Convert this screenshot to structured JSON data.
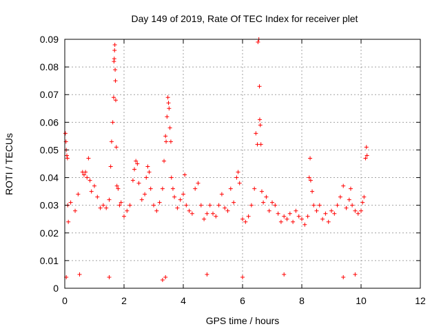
{
  "chart_data": {
    "type": "scatter",
    "title": "Day 149 of 2019, Rate Of TEC Index for receiver plet",
    "xlabel": "GPS time / hours",
    "ylabel": "ROTI / TECUs",
    "xlim": [
      0,
      12
    ],
    "ylim": [
      0,
      0.09
    ],
    "xticks": [
      0,
      2,
      4,
      6,
      8,
      10,
      12
    ],
    "yticks": [
      0,
      0.01,
      0.02,
      0.03,
      0.04,
      0.05,
      0.06,
      0.07,
      0.08,
      0.09
    ],
    "xtick_labels": [
      "0",
      "2",
      "4",
      "6",
      "8",
      "10",
      "12"
    ],
    "ytick_labels": [
      "0",
      "0.01",
      "0.02",
      "0.03",
      "0.04",
      "0.05",
      "0.06",
      "0.07",
      "0.08",
      "0.09"
    ],
    "grid": true,
    "marker": "+",
    "color": "#ff0000",
    "series": [
      {
        "name": "ROTI",
        "points": [
          [
            0.02,
            0.056
          ],
          [
            0.04,
            0.053
          ],
          [
            0.05,
            0.05
          ],
          [
            0.07,
            0.048
          ],
          [
            0.09,
            0.047
          ],
          [
            0.1,
            0.03
          ],
          [
            0.12,
            0.024
          ],
          [
            0.2,
            0.031
          ],
          [
            0.35,
            0.028
          ],
          [
            0.45,
            0.034
          ],
          [
            0.6,
            0.042
          ],
          [
            0.65,
            0.041
          ],
          [
            0.7,
            0.042
          ],
          [
            0.75,
            0.04
          ],
          [
            0.8,
            0.047
          ],
          [
            0.85,
            0.039
          ],
          [
            0.9,
            0.035
          ],
          [
            1.0,
            0.037
          ],
          [
            1.1,
            0.033
          ],
          [
            1.2,
            0.029
          ],
          [
            1.3,
            0.03
          ],
          [
            1.4,
            0.029
          ],
          [
            1.5,
            0.032
          ],
          [
            1.55,
            0.044
          ],
          [
            1.58,
            0.053
          ],
          [
            1.62,
            0.06
          ],
          [
            1.65,
            0.069
          ],
          [
            1.66,
            0.082
          ],
          [
            1.67,
            0.083
          ],
          [
            1.68,
            0.086
          ],
          [
            1.69,
            0.088
          ],
          [
            1.7,
            0.079
          ],
          [
            1.71,
            0.075
          ],
          [
            1.72,
            0.068
          ],
          [
            1.74,
            0.051
          ],
          [
            1.76,
            0.037
          ],
          [
            1.8,
            0.036
          ],
          [
            1.85,
            0.03
          ],
          [
            1.9,
            0.031
          ],
          [
            2.0,
            0.026
          ],
          [
            2.1,
            0.028
          ],
          [
            2.2,
            0.03
          ],
          [
            2.3,
            0.039
          ],
          [
            2.35,
            0.043
          ],
          [
            2.4,
            0.046
          ],
          [
            2.45,
            0.045
          ],
          [
            2.5,
            0.038
          ],
          [
            2.6,
            0.032
          ],
          [
            2.7,
            0.034
          ],
          [
            2.75,
            0.04
          ],
          [
            2.8,
            0.044
          ],
          [
            2.85,
            0.042
          ],
          [
            2.9,
            0.036
          ],
          [
            3.0,
            0.03
          ],
          [
            3.1,
            0.028
          ],
          [
            3.2,
            0.031
          ],
          [
            3.3,
            0.036
          ],
          [
            3.35,
            0.046
          ],
          [
            3.4,
            0.055
          ],
          [
            3.42,
            0.053
          ],
          [
            3.45,
            0.062
          ],
          [
            3.48,
            0.069
          ],
          [
            3.5,
            0.067
          ],
          [
            3.52,
            0.065
          ],
          [
            3.55,
            0.058
          ],
          [
            3.58,
            0.053
          ],
          [
            3.6,
            0.04
          ],
          [
            3.65,
            0.036
          ],
          [
            3.7,
            0.033
          ],
          [
            3.8,
            0.029
          ],
          [
            3.9,
            0.032
          ],
          [
            4.0,
            0.034
          ],
          [
            4.05,
            0.041
          ],
          [
            4.1,
            0.03
          ],
          [
            4.2,
            0.028
          ],
          [
            4.3,
            0.027
          ],
          [
            4.4,
            0.036
          ],
          [
            4.5,
            0.038
          ],
          [
            4.6,
            0.03
          ],
          [
            4.7,
            0.025
          ],
          [
            4.8,
            0.027
          ],
          [
            4.9,
            0.03
          ],
          [
            5.0,
            0.027
          ],
          [
            5.1,
            0.026
          ],
          [
            5.2,
            0.03
          ],
          [
            5.3,
            0.034
          ],
          [
            5.4,
            0.029
          ],
          [
            5.5,
            0.028
          ],
          [
            5.6,
            0.036
          ],
          [
            5.7,
            0.031
          ],
          [
            5.8,
            0.04
          ],
          [
            5.85,
            0.042
          ],
          [
            5.9,
            0.038
          ],
          [
            6.0,
            0.025
          ],
          [
            6.1,
            0.024
          ],
          [
            6.2,
            0.026
          ],
          [
            6.3,
            0.03
          ],
          [
            6.4,
            0.036
          ],
          [
            6.45,
            0.056
          ],
          [
            6.5,
            0.052
          ],
          [
            6.52,
            0.089
          ],
          [
            6.55,
            0.09
          ],
          [
            6.57,
            0.073
          ],
          [
            6.58,
            0.061
          ],
          [
            6.6,
            0.059
          ],
          [
            6.62,
            0.052
          ],
          [
            6.65,
            0.035
          ],
          [
            6.7,
            0.031
          ],
          [
            6.8,
            0.033
          ],
          [
            6.9,
            0.028
          ],
          [
            7.0,
            0.031
          ],
          [
            7.1,
            0.03
          ],
          [
            7.2,
            0.027
          ],
          [
            7.3,
            0.024
          ],
          [
            7.4,
            0.026
          ],
          [
            7.5,
            0.025
          ],
          [
            7.6,
            0.027
          ],
          [
            7.7,
            0.024
          ],
          [
            7.8,
            0.028
          ],
          [
            7.9,
            0.026
          ],
          [
            8.0,
            0.025
          ],
          [
            8.1,
            0.023
          ],
          [
            8.2,
            0.026
          ],
          [
            8.25,
            0.04
          ],
          [
            8.28,
            0.047
          ],
          [
            8.3,
            0.039
          ],
          [
            8.35,
            0.035
          ],
          [
            8.4,
            0.03
          ],
          [
            8.5,
            0.028
          ],
          [
            8.6,
            0.03
          ],
          [
            8.7,
            0.025
          ],
          [
            8.8,
            0.027
          ],
          [
            8.9,
            0.024
          ],
          [
            9.0,
            0.028
          ],
          [
            9.1,
            0.027
          ],
          [
            9.2,
            0.03
          ],
          [
            9.3,
            0.033
          ],
          [
            9.4,
            0.037
          ],
          [
            9.5,
            0.029
          ],
          [
            9.6,
            0.032
          ],
          [
            9.65,
            0.036
          ],
          [
            9.7,
            0.03
          ],
          [
            9.8,
            0.028
          ],
          [
            9.9,
            0.027
          ],
          [
            10.0,
            0.028
          ],
          [
            10.05,
            0.031
          ],
          [
            10.1,
            0.033
          ],
          [
            10.15,
            0.047
          ],
          [
            10.18,
            0.051
          ],
          [
            10.2,
            0.048
          ],
          [
            0.05,
            0.004
          ],
          [
            0.5,
            0.005
          ],
          [
            1.5,
            0.004
          ],
          [
            3.3,
            0.003
          ],
          [
            3.4,
            0.004
          ],
          [
            4.8,
            0.005
          ],
          [
            6.0,
            0.004
          ],
          [
            7.4,
            0.005
          ],
          [
            9.4,
            0.004
          ],
          [
            9.8,
            0.005
          ]
        ]
      }
    ]
  }
}
